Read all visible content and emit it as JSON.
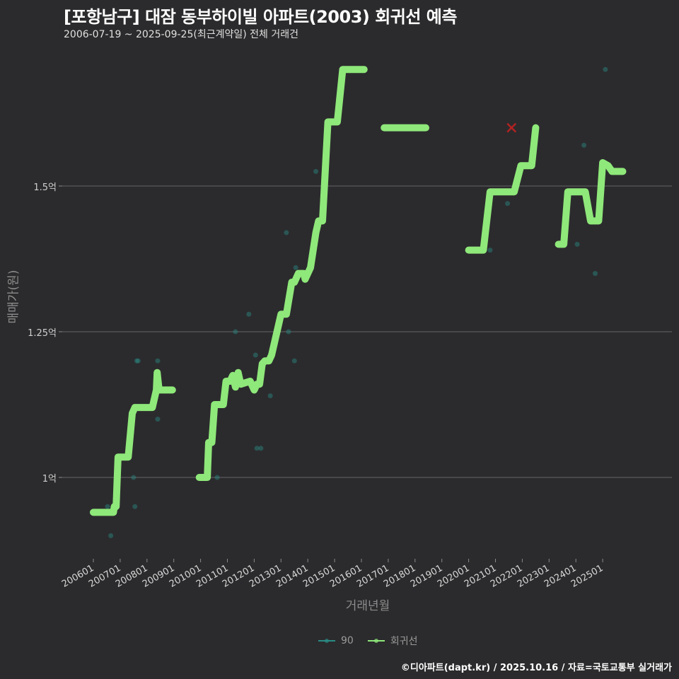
{
  "header": {
    "title": "[포항남구] 대잠 동부하이빌 아파트(2003) 회귀선 예측",
    "subtitle": "2006-07-19 ~ 2025-09-25(최근계약일) 전체 거래건"
  },
  "footer": {
    "credit": "©디아파트(dapt.kr) / 2025.10.16 / 자료=국토교통부 실거래가"
  },
  "legend": {
    "items": [
      {
        "label": "90",
        "color": "#2a8c86"
      },
      {
        "label": "회귀선",
        "color": "#8fe87a"
      }
    ]
  },
  "chart_data": {
    "type": "line",
    "title": "[포항남구] 대잠 동부하이빌 아파트(2003) 회귀선 예측",
    "subtitle": "2006-07-19 ~ 2025-09-25(최근계약일) 전체 거래건",
    "xlabel": "거래년월",
    "ylabel": "매매가(원)",
    "x_ticks": [
      "200601",
      "200701",
      "200801",
      "200901",
      "201001",
      "201101",
      "201201",
      "201301",
      "201401",
      "201501",
      "201601",
      "201701",
      "201801",
      "201901",
      "202001",
      "202101",
      "202201",
      "202301",
      "202401",
      "202501"
    ],
    "y_ticks": [
      {
        "value": 1.0,
        "label": "1억"
      },
      {
        "value": 1.25,
        "label": "1.25억"
      },
      {
        "value": 1.5,
        "label": "1.5억"
      }
    ],
    "ylim": [
      0.87,
      1.72
    ],
    "grid": true,
    "legend_position": "bottom",
    "units": "억원",
    "series": [
      {
        "name": "90",
        "kind": "scatter",
        "color": "#2a8c86",
        "points": [
          [
            2006.53,
            0.95
          ],
          [
            2006.65,
            0.9
          ],
          [
            2007.5,
            1.0
          ],
          [
            2007.55,
            0.95
          ],
          [
            2007.62,
            1.2
          ],
          [
            2007.67,
            1.2
          ],
          [
            2008.4,
            1.2
          ],
          [
            2008.4,
            1.1
          ],
          [
            2010.62,
            1.0
          ],
          [
            2011.3,
            1.25
          ],
          [
            2011.8,
            1.28
          ],
          [
            2012.05,
            1.21
          ],
          [
            2012.1,
            1.05
          ],
          [
            2012.25,
            1.05
          ],
          [
            2012.6,
            1.14
          ],
          [
            2013.2,
            1.42
          ],
          [
            2013.28,
            1.25
          ],
          [
            2013.5,
            1.2
          ],
          [
            2013.55,
            1.36
          ],
          [
            2014.3,
            1.525
          ],
          [
            2020.8,
            1.39
          ],
          [
            2021.45,
            1.47
          ],
          [
            2024.05,
            1.4
          ],
          [
            2024.3,
            1.57
          ],
          [
            2024.72,
            1.35
          ],
          [
            2025.1,
            1.7
          ]
        ]
      },
      {
        "name": "회귀선",
        "kind": "line",
        "color": "#8fe87a",
        "segments": [
          [
            [
              2006.0,
              0.94
            ],
            [
              2006.75,
              0.94
            ],
            [
              2006.78,
              0.95
            ],
            [
              2006.85,
              0.95
            ],
            [
              2006.92,
              1.035
            ],
            [
              2007.3,
              1.035
            ],
            [
              2007.45,
              1.11
            ],
            [
              2007.55,
              1.12
            ],
            [
              2008.2,
              1.12
            ],
            [
              2008.35,
              1.15
            ],
            [
              2008.38,
              1.18
            ],
            [
              2008.45,
              1.15
            ],
            [
              2008.95,
              1.15
            ]
          ],
          [
            [
              2009.95,
              1.0
            ],
            [
              2010.25,
              1.0
            ],
            [
              2010.3,
              1.06
            ],
            [
              2010.42,
              1.06
            ],
            [
              2010.52,
              1.125
            ],
            [
              2010.85,
              1.125
            ],
            [
              2010.95,
              1.165
            ],
            [
              2011.1,
              1.165
            ],
            [
              2011.2,
              1.175
            ],
            [
              2011.3,
              1.155
            ],
            [
              2011.4,
              1.18
            ],
            [
              2011.5,
              1.16
            ],
            [
              2011.85,
              1.165
            ],
            [
              2012.0,
              1.15
            ],
            [
              2012.1,
              1.16
            ],
            [
              2012.2,
              1.16
            ],
            [
              2012.3,
              1.195
            ],
            [
              2012.4,
              1.2
            ],
            [
              2012.55,
              1.2
            ],
            [
              2012.65,
              1.21
            ],
            [
              2012.75,
              1.23
            ],
            [
              2012.85,
              1.25
            ],
            [
              2013.0,
              1.28
            ],
            [
              2013.2,
              1.28
            ],
            [
              2013.4,
              1.335
            ],
            [
              2013.5,
              1.335
            ],
            [
              2013.65,
              1.35
            ],
            [
              2013.85,
              1.35
            ],
            [
              2013.9,
              1.34
            ],
            [
              2014.1,
              1.36
            ],
            [
              2014.3,
              1.42
            ],
            [
              2014.4,
              1.44
            ],
            [
              2014.55,
              1.44
            ],
            [
              2014.75,
              1.61
            ],
            [
              2015.1,
              1.61
            ],
            [
              2015.3,
              1.7
            ],
            [
              2016.1,
              1.7
            ]
          ],
          [
            [
              2016.85,
              1.6
            ],
            [
              2018.4,
              1.6
            ]
          ],
          [
            [
              2020.0,
              1.39
            ],
            [
              2020.55,
              1.39
            ],
            [
              2020.8,
              1.49
            ],
            [
              2021.7,
              1.49
            ],
            [
              2021.95,
              1.535
            ],
            [
              2022.35,
              1.535
            ],
            [
              2022.5,
              1.6
            ]
          ],
          [
            [
              2023.35,
              1.4
            ],
            [
              2023.55,
              1.4
            ],
            [
              2023.7,
              1.49
            ],
            [
              2024.35,
              1.49
            ],
            [
              2024.55,
              1.44
            ],
            [
              2024.85,
              1.44
            ],
            [
              2025.0,
              1.54
            ],
            [
              2025.2,
              1.535
            ],
            [
              2025.35,
              1.525
            ],
            [
              2025.75,
              1.525
            ]
          ]
        ]
      }
    ],
    "annotations": [
      {
        "type": "outlier-marker",
        "shape": "x",
        "color": "#b22222",
        "x": 2021.6,
        "y": 1.6
      }
    ]
  }
}
